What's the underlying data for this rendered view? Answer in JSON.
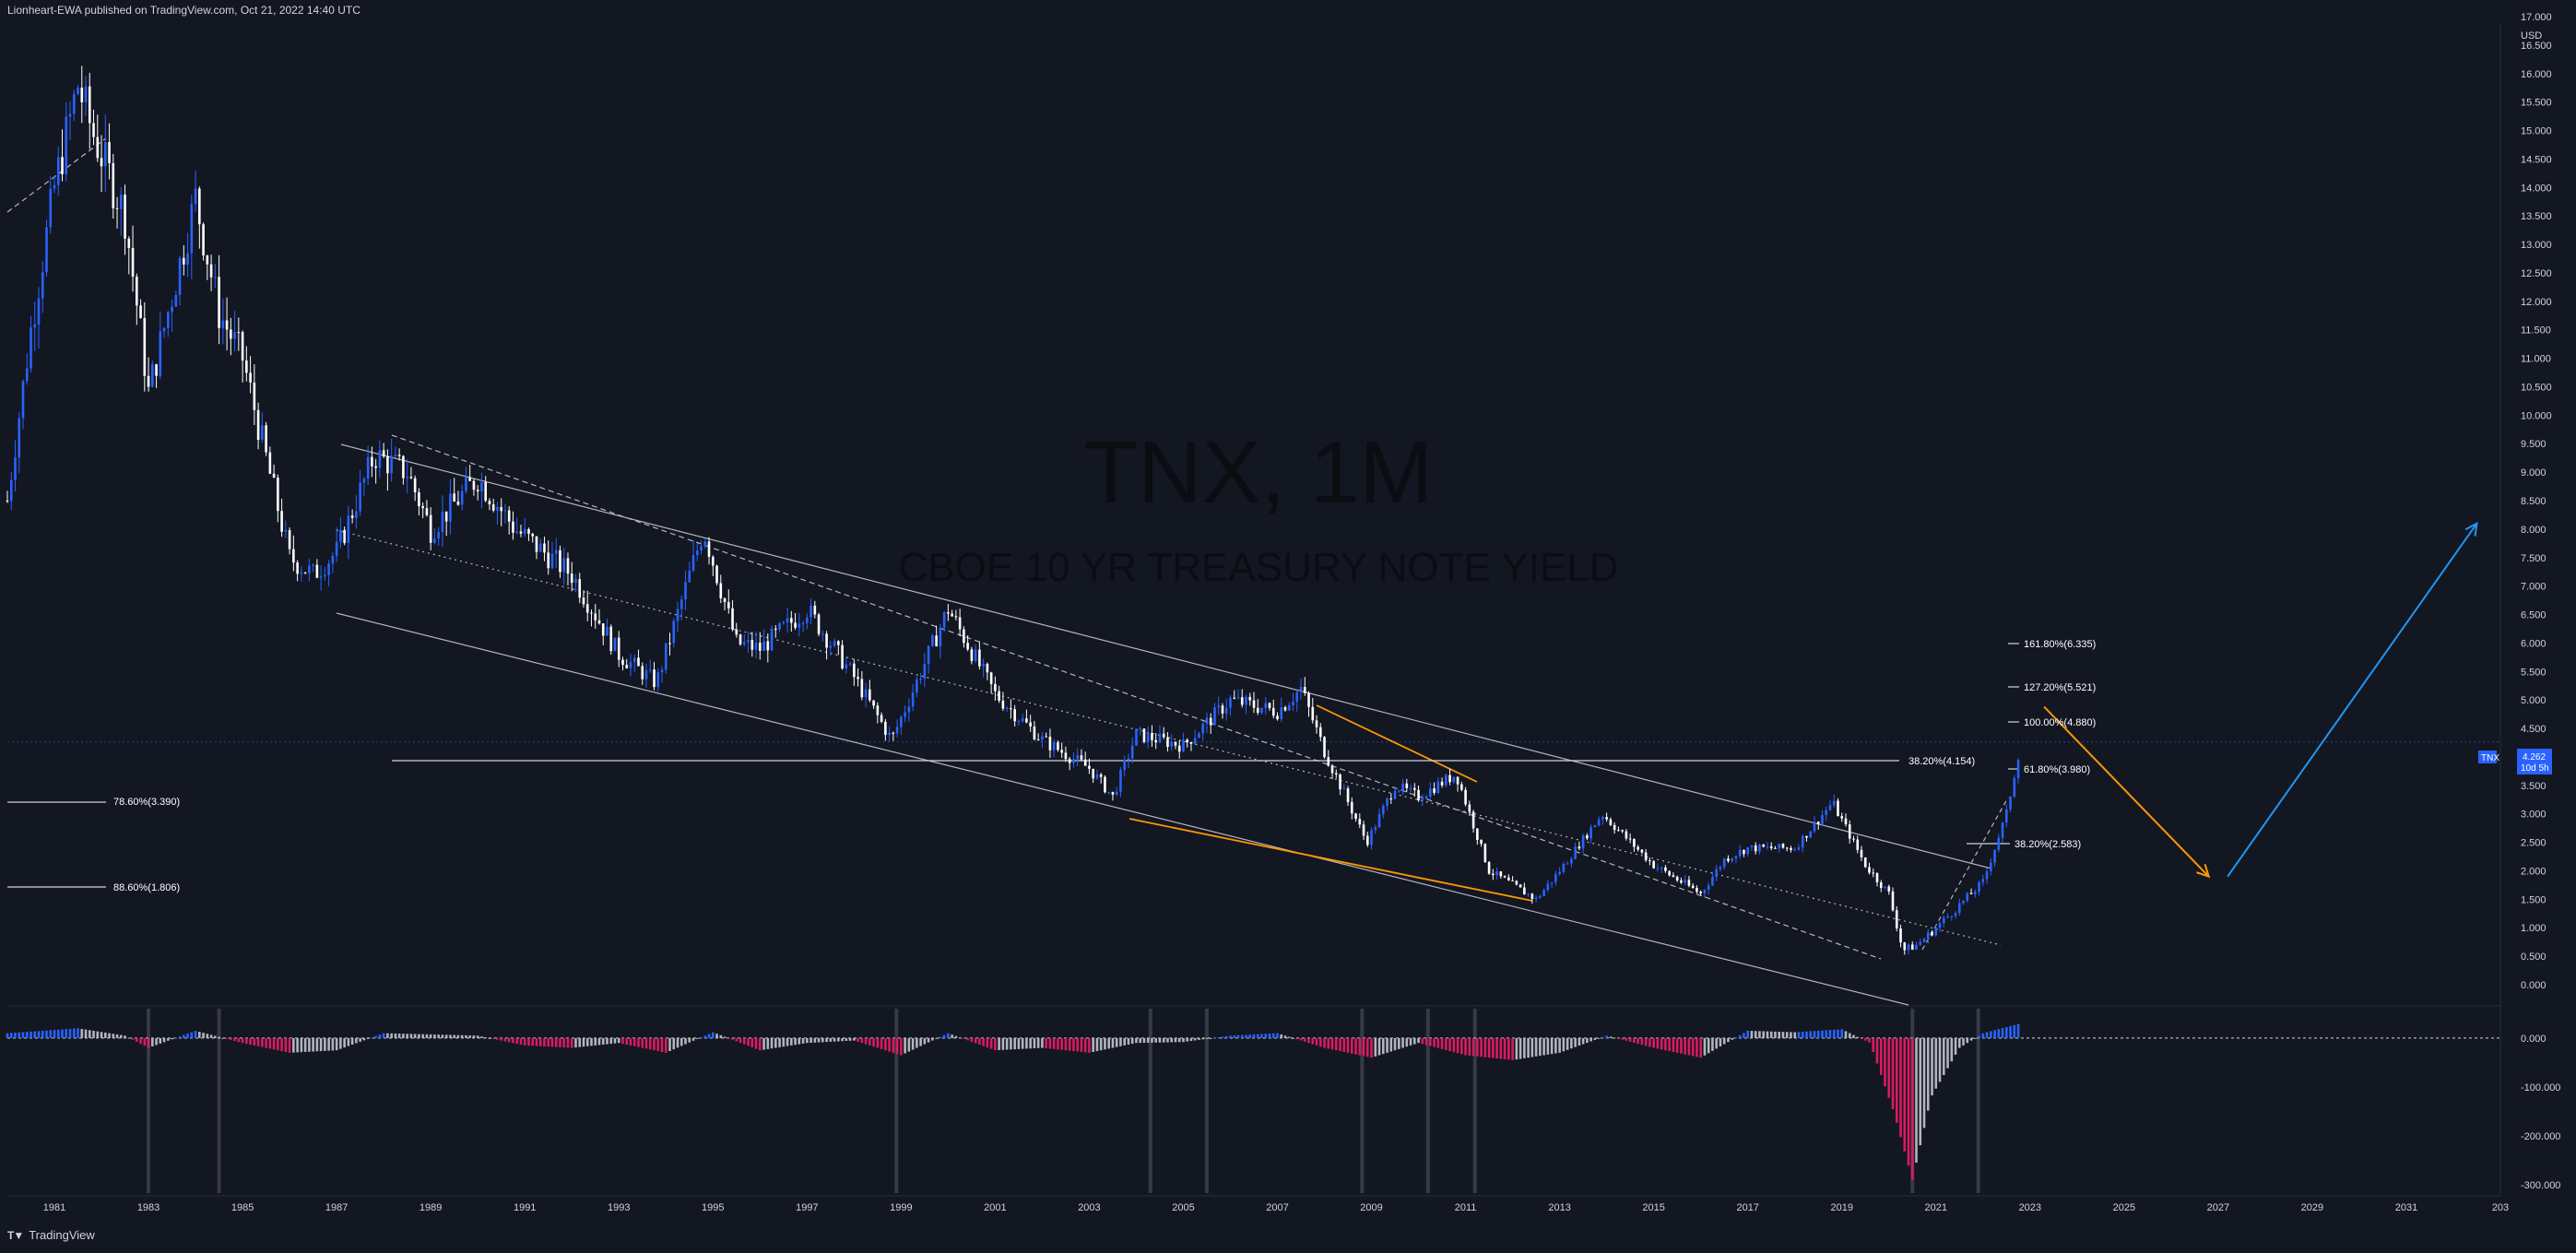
{
  "header": {
    "publisher": "Lionheart-EWA published on TradingView.com, Oct 21, 2022 14:40 UTC"
  },
  "footer": {
    "brand": "TradingView",
    "logo": "tradingview-logo-icon"
  },
  "watermark": {
    "title": "TNX, 1M",
    "subtitle": "CBOE 10 YR TREASURY NOTE YIELD"
  },
  "price_axis": {
    "currency": "USD",
    "labels": [
      "17.000",
      "16.500",
      "16.000",
      "15.500",
      "15.000",
      "14.500",
      "14.000",
      "13.500",
      "13.000",
      "12.500",
      "12.000",
      "11.500",
      "11.000",
      "10.500",
      "10.000",
      "9.500",
      "9.000",
      "8.500",
      "8.000",
      "7.500",
      "7.000",
      "6.500",
      "6.000",
      "5.500",
      "5.000",
      "4.500",
      "4.000",
      "3.500",
      "3.000",
      "2.500",
      "2.000",
      "1.500",
      "1.000",
      "0.500",
      "0.000"
    ]
  },
  "osc_axis": {
    "labels": [
      "0.000",
      "-100.000",
      "-200.000",
      "-300.000"
    ]
  },
  "time_axis": {
    "labels": [
      "1981",
      "1983",
      "1985",
      "1987",
      "1989",
      "1991",
      "1993",
      "1995",
      "1997",
      "1999",
      "2001",
      "2003",
      "2005",
      "2007",
      "2009",
      "2011",
      "2013",
      "2015",
      "2017",
      "2019",
      "2021",
      "2023",
      "2025",
      "2027",
      "2029",
      "2031",
      "203"
    ]
  },
  "price_badge": {
    "symbol": "TNX",
    "price": "4.262",
    "countdown": "10d 5h",
    "color": "#2962ff"
  },
  "fib_labels": {
    "left_786": "78.60%(3.390)",
    "left_886": "88.60%(1.806)",
    "mid_382": "38.20%(4.154)",
    "r_1618": "161.80%(6.335)",
    "r_1272": "127.20%(5.521)",
    "r_1000": "100.00%(4.880)",
    "r_618": "61.80%(3.980)",
    "r_382": "38.20%(2.583)"
  },
  "colors": {
    "up": "#2962ff",
    "down": "#ffffff",
    "bg": "#131722",
    "osc_pos": "#2962ff",
    "osc_neg": "#d81b60",
    "osc_fade": "#b2b5be",
    "projection_down": "#ff9800",
    "projection_up": "#2196f3"
  },
  "chart_data": {
    "type": "candlestick",
    "title": "TNX, 1M",
    "subtitle": "CBOE 10 YR TREASURY NOTE YIELD",
    "ylabel": "USD",
    "ylim": [
      0,
      17
    ],
    "xlim": [
      1980,
      2033
    ],
    "series": [
      {
        "name": "TNX",
        "x": [
          1980,
          1980.5,
          1981,
          1981.5,
          1981.8,
          1982.5,
          1983,
          1984,
          1984.5,
          1985,
          1986,
          1986.5,
          1987,
          1987.8,
          1988.5,
          1989,
          1990,
          1990.8,
          1992,
          1993,
          1993.8,
          1994.8,
          1995.5,
          1996,
          1997,
          1998,
          1998.8,
          2000,
          2001,
          2002,
          2003,
          2003.5,
          2004,
          2005,
          2006,
          2007,
          2007.5,
          2008,
          2008.9,
          2009.5,
          2010,
          2010.8,
          2011.5,
          2012.5,
          2013,
          2013.9,
          2015,
          2016,
          2016.5,
          2017,
          2018,
          2018.8,
          2019.5,
          2020,
          2020.3,
          2020.6,
          2021,
          2021.5,
          2022,
          2022.5,
          2022.8
        ],
        "y": [
          8.5,
          11.5,
          14,
          15.8,
          15.0,
          13.5,
          10.4,
          13.8,
          11.8,
          11.0,
          7.5,
          7.2,
          7.6,
          9.3,
          9.0,
          8.0,
          8.9,
          8.0,
          7.2,
          5.8,
          5.3,
          8.0,
          6.0,
          5.9,
          6.6,
          5.4,
          4.3,
          6.6,
          5.1,
          4.3,
          3.8,
          3.3,
          4.4,
          4.2,
          5.0,
          4.8,
          5.2,
          4.1,
          2.5,
          3.5,
          3.3,
          3.7,
          2.0,
          1.5,
          2.0,
          3.0,
          2.1,
          1.6,
          2.2,
          2.4,
          2.4,
          3.2,
          2.1,
          1.6,
          0.6,
          0.7,
          1.0,
          1.4,
          1.8,
          3.0,
          4.262
        ]
      }
    ],
    "fib_levels": [
      {
        "label": "78.60%(3.390)",
        "value": 3.39
      },
      {
        "label": "88.60%(1.806)",
        "value": 1.806
      },
      {
        "label": "38.20%(4.154)",
        "value": 4.154
      },
      {
        "label": "161.80%(6.335)",
        "value": 6.335
      },
      {
        "label": "127.20%(5.521)",
        "value": 5.521
      },
      {
        "label": "100.00%(4.880)",
        "value": 4.88
      },
      {
        "label": "61.80%(3.980)",
        "value": 3.98
      },
      {
        "label": "38.20%(2.583)",
        "value": 2.583
      }
    ],
    "projection": [
      {
        "from": [
          2023.3,
          4.88
        ],
        "to": [
          2026.8,
          1.9
        ],
        "color": "#ff9800"
      },
      {
        "from": [
          2027.2,
          1.9
        ],
        "to": [
          2032.5,
          8.1
        ],
        "color": "#2196f3"
      }
    ],
    "oscillator": {
      "ylim": [
        -300,
        30
      ],
      "x": [
        1980,
        1981.5,
        1982.5,
        1983,
        1984,
        1985,
        1986,
        1987,
        1988,
        1990,
        1991,
        1992,
        1993,
        1994,
        1995,
        1996,
        1997,
        1998,
        1999,
        2000,
        2001,
        2002,
        2003,
        2004,
        2005,
        2006,
        2007,
        2008,
        2009,
        2010,
        2011,
        2012,
        2013,
        2014,
        2015,
        2016,
        2017,
        2018,
        2019,
        2019.6,
        2020.1,
        2020.5,
        2020.9,
        2021.5,
        2022,
        2022.8
      ],
      "y": [
        10,
        20,
        5,
        -20,
        15,
        -10,
        -30,
        -25,
        10,
        5,
        -15,
        -20,
        -10,
        -30,
        12,
        -25,
        -10,
        -5,
        -35,
        10,
        -25,
        -20,
        -30,
        -10,
        -8,
        5,
        10,
        -20,
        -40,
        -10,
        -35,
        -45,
        -30,
        5,
        -20,
        -40,
        15,
        12,
        18,
        -10,
        -150,
        -290,
        -120,
        -20,
        10,
        30
      ]
    }
  }
}
